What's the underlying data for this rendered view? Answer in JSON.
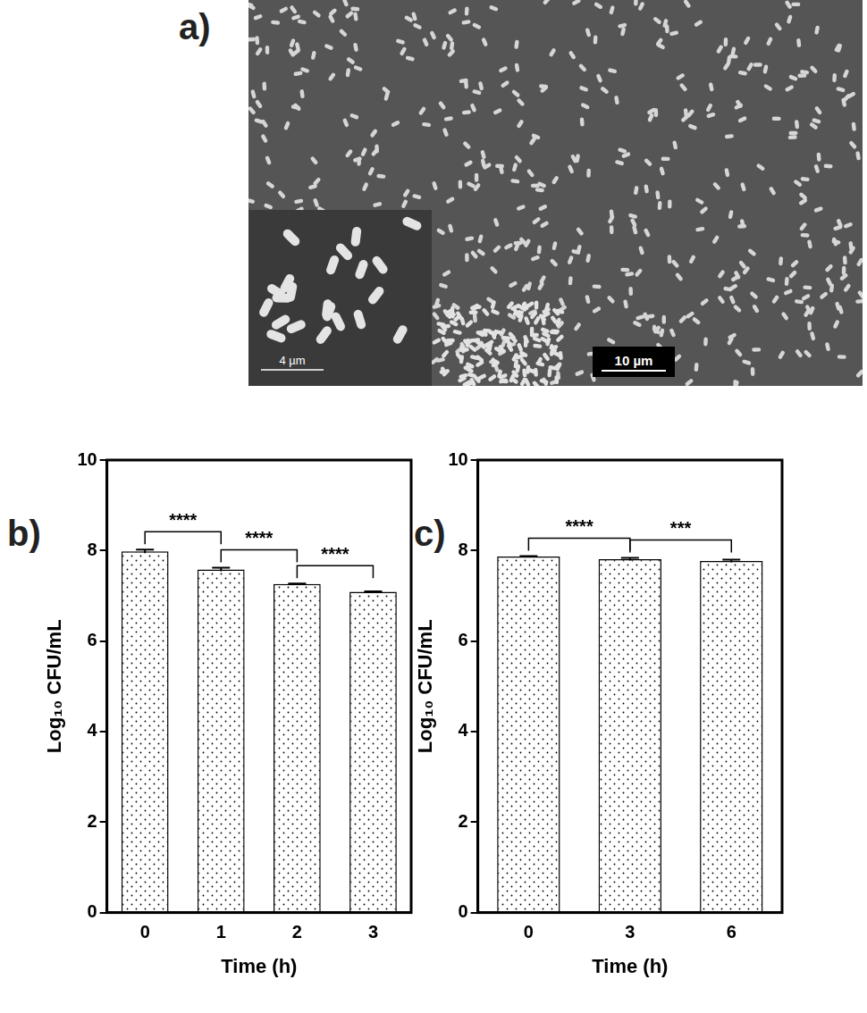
{
  "image_panel": {
    "label": "a)",
    "scale_bar": "10 µm",
    "inset_scale_bar": "4 µm"
  },
  "chart_data": [
    {
      "type": "bar",
      "title": "b)",
      "x_label": "Time (h)",
      "y_label": "Log₁₀ CFU/mL",
      "categories": [
        "0",
        "1",
        "2",
        "3"
      ],
      "values": [
        7.98,
        7.58,
        7.26,
        7.09
      ],
      "errors": [
        0.04,
        0.04,
        0.01,
        0.01
      ],
      "color": "#ffffff",
      "ylim": [
        0,
        10
      ],
      "yticks": [
        0,
        2,
        4,
        6,
        8,
        10
      ],
      "grid": false,
      "annotations": [
        {
          "between": [
            "0",
            "1"
          ],
          "label": "****"
        },
        {
          "between": [
            "1",
            "2"
          ],
          "label": "****"
        },
        {
          "between": [
            "2",
            "3"
          ],
          "label": "****"
        }
      ]
    },
    {
      "type": "bar",
      "title": "c)",
      "x_label": "Time (h)",
      "y_label": "Log₁₀ CFU/mL",
      "categories": [
        "0",
        "3",
        "6"
      ],
      "values": [
        7.87,
        7.81,
        7.77
      ],
      "errors": [
        0.01,
        0.03,
        0.03
      ],
      "color": "#ffffff",
      "ylim": [
        0,
        10
      ],
      "yticks": [
        0,
        2,
        4,
        6,
        8,
        10
      ],
      "grid": false,
      "annotations": [
        {
          "between": [
            "0",
            "3"
          ],
          "label": "****"
        },
        {
          "between": [
            "3",
            "6"
          ],
          "label": "***"
        }
      ]
    }
  ]
}
